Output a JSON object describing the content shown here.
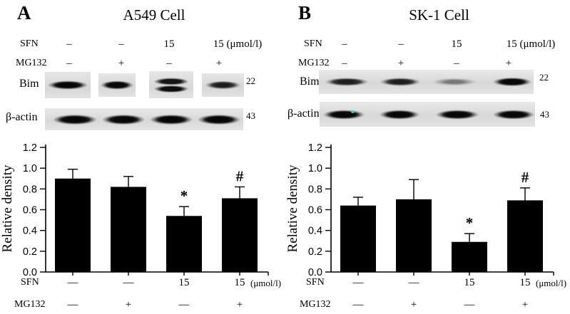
{
  "chart_data": [
    {
      "type": "bar",
      "panel": "A",
      "title": "A549 Cell",
      "ylabel": "Relative density",
      "ylim": [
        0,
        1.2
      ],
      "yticks": [
        0,
        0.2,
        0.4,
        0.6,
        0.8,
        1.0,
        1.2
      ],
      "values": [
        0.9,
        0.82,
        0.54,
        0.71
      ],
      "errors": [
        0.09,
        0.1,
        0.09,
        0.11
      ],
      "annotations": [
        "",
        "",
        "*",
        "#"
      ],
      "bar_color": "#000000",
      "grid": false,
      "x_rows": [
        {
          "label": "SFN",
          "values": [
            "—",
            "—",
            "15",
            "15"
          ],
          "unit": "(μmol/l)"
        },
        {
          "label": "MG132",
          "values": [
            "—",
            "+",
            "—",
            "+"
          ]
        }
      ]
    },
    {
      "type": "bar",
      "panel": "B",
      "title": "SK-1 Cell",
      "ylabel": "Relative density",
      "ylim": [
        0,
        1.2
      ],
      "yticks": [
        0,
        0.2,
        0.4,
        0.6,
        0.8,
        1.0,
        1.2
      ],
      "values": [
        0.64,
        0.7,
        0.29,
        0.69
      ],
      "errors": [
        0.08,
        0.19,
        0.08,
        0.12
      ],
      "annotations": [
        "",
        "",
        "*",
        "#"
      ],
      "bar_color": "#000000",
      "grid": false,
      "x_rows": [
        {
          "label": "SFN",
          "values": [
            "—",
            "—",
            "15",
            "15"
          ],
          "unit": "(μmol/l)"
        },
        {
          "label": "MG132",
          "values": [
            "—",
            "+",
            "—",
            "+"
          ]
        }
      ]
    }
  ],
  "figure": {
    "panels": [
      {
        "letter": "A",
        "title": "A549 Cell",
        "treatment_rows": [
          {
            "label": "SFN",
            "values": [
              "–",
              "–",
              "15",
              "15 (μmol/l)"
            ]
          },
          {
            "label": "MG132",
            "values": [
              "–",
              "+",
              "–",
              "+"
            ]
          }
        ],
        "blots": [
          {
            "label": "Bim",
            "mw": "22",
            "bands": [
              "dark",
              "dark",
              "doublet",
              "medium"
            ]
          },
          {
            "label": "β-actin",
            "mw": "43",
            "bands": [
              "dark",
              "dark",
              "dark",
              "dark"
            ]
          }
        ]
      },
      {
        "letter": "B",
        "title": "SK-1 Cell",
        "treatment_rows": [
          {
            "label": "SFN",
            "values": [
              "–",
              "–",
              "15",
              "15 (μmol/l)"
            ]
          },
          {
            "label": "MG132",
            "values": [
              "–",
              "+",
              "–",
              "+"
            ]
          }
        ],
        "blots": [
          {
            "label": "Bim",
            "mw": "22",
            "bands": [
              "medium",
              "medium",
              "faint",
              "dark"
            ]
          },
          {
            "label": "β-actin",
            "mw": "43",
            "bands": [
              "dark",
              "dark",
              "dark",
              "dark"
            ]
          }
        ]
      }
    ]
  }
}
